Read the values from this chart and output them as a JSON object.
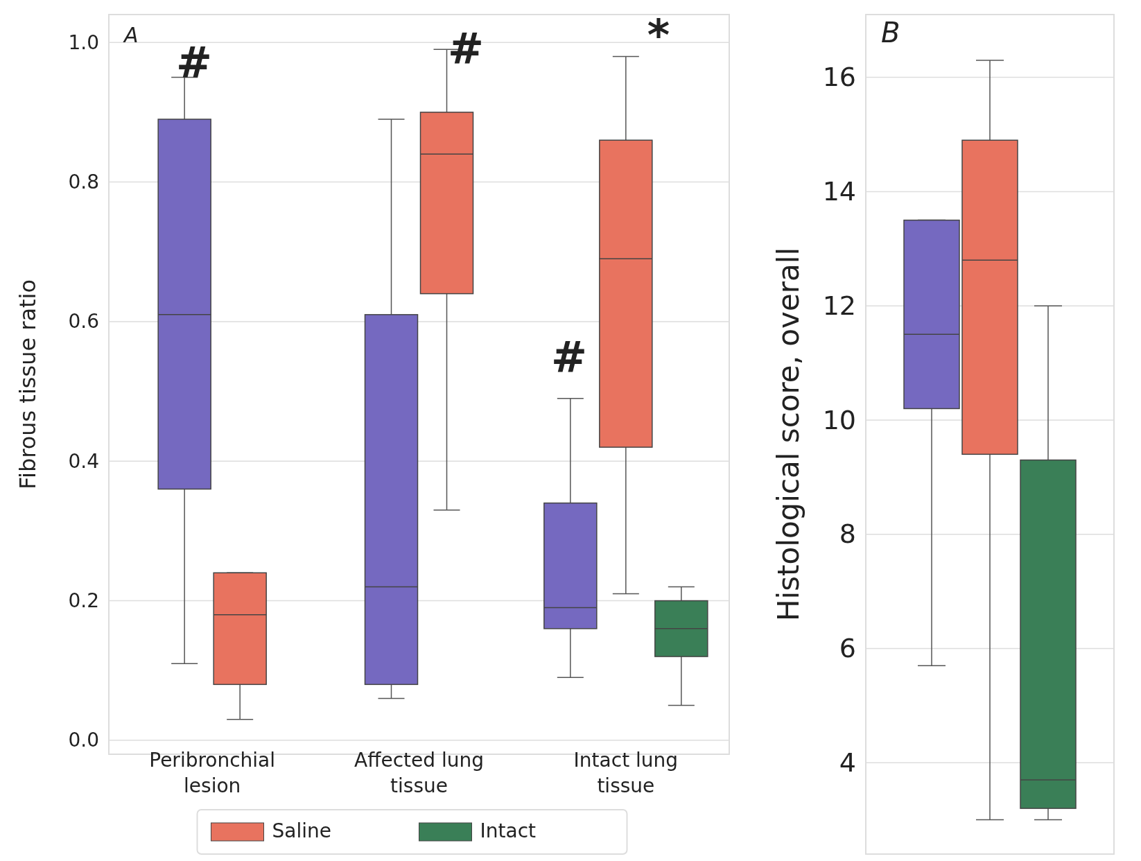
{
  "chart_data": [
    {
      "type": "box",
      "ylabel": "Fibrous tissue ratio",
      "categories": [
        "Peribronchial lesion",
        "Affected lung tissue",
        "Intact lung tissue"
      ],
      "series": [
        {
          "color": "#7569c0",
          "boxes": [
            {
              "low": 0.11,
              "q1": 0.36,
              "median": 0.61,
              "q3": 0.89,
              "high": 0.95
            },
            {
              "low": 0.06,
              "q1": 0.08,
              "median": 0.22,
              "q3": 0.61,
              "high": 0.89
            },
            {
              "low": 0.09,
              "q1": 0.16,
              "median": 0.19,
              "q3": 0.34,
              "high": 0.49
            }
          ]
        },
        {
          "name": "Saline",
          "color": "#e8735f",
          "boxes": [
            {
              "low": 0.03,
              "q1": 0.08,
              "median": 0.18,
              "q3": 0.24,
              "high": 0.24
            },
            {
              "low": 0.33,
              "q1": 0.64,
              "median": 0.84,
              "q3": 0.9,
              "high": 0.99
            },
            {
              "low": 0.21,
              "q1": 0.42,
              "median": 0.69,
              "q3": 0.86,
              "high": 0.98
            }
          ]
        },
        {
          "name": "Intact",
          "color": "#3a7f57",
          "boxes": [
            null,
            null,
            {
              "low": 0.05,
              "q1": 0.12,
              "median": 0.16,
              "q3": 0.2,
              "high": 0.22
            }
          ]
        }
      ],
      "ylim": [
        -0.02,
        1.04
      ],
      "yticks": [
        {
          "value": 0,
          "label": "0.0"
        },
        {
          "value": 0.2,
          "label": "0.2"
        },
        {
          "value": 0.4,
          "label": "0.4"
        },
        {
          "value": 0.6,
          "label": "0.6"
        },
        {
          "value": 0.8,
          "label": "0.8"
        },
        {
          "value": 1,
          "label": "1.0"
        }
      ],
      "grid": "y",
      "legend": "bottom",
      "annotations": [
        "A",
        "#",
        "#",
        "#",
        "*"
      ]
    },
    {
      "type": "box",
      "ylabel": "Histological score, overall",
      "categories": [
        null
      ],
      "series": [
        {
          "color": "#7569c0",
          "boxes": [
            {
              "low": 5.7,
              "q1": 10.2,
              "median": 11.5,
              "q3": 13.5,
              "high": 13.5
            }
          ]
        },
        {
          "color": "#e8735f",
          "boxes": [
            {
              "low": 3.0,
              "q1": 9.4,
              "median": 12.8,
              "q3": 14.9,
              "high": 16.3
            }
          ]
        },
        {
          "color": "#3a7f57",
          "boxes": [
            {
              "low": 3.0,
              "q1": 3.2,
              "median": 3.7,
              "q3": 9.3,
              "high": 12.0
            }
          ]
        }
      ],
      "ylim": [
        2.4,
        17.1
      ],
      "yticks": [
        4,
        6,
        8,
        10,
        12,
        14,
        16
      ],
      "grid": "y",
      "annotations": [
        "B"
      ]
    }
  ]
}
